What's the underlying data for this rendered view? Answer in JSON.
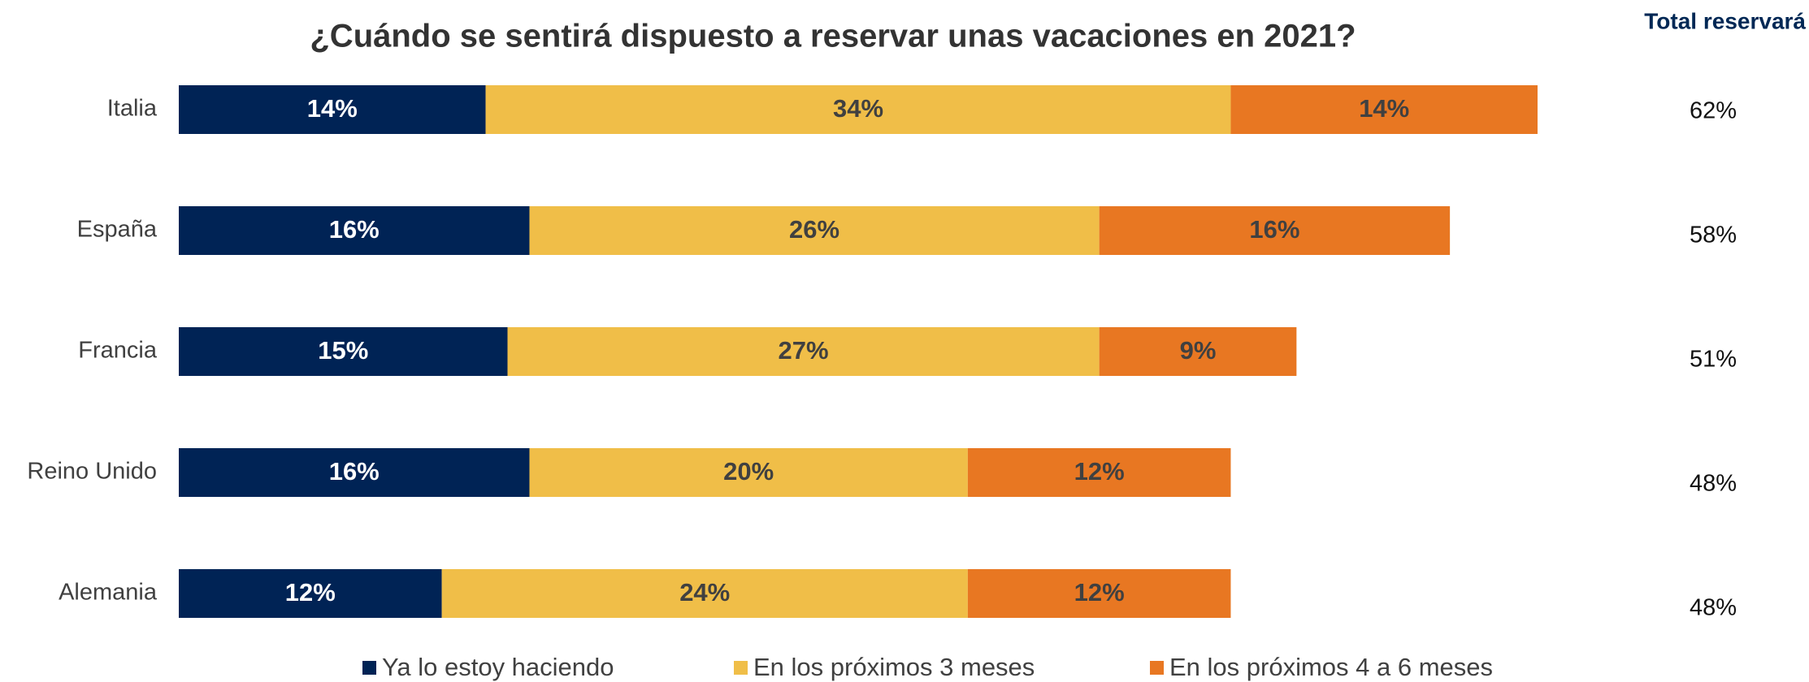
{
  "chart_data": {
    "type": "stacked-bar-horizontal",
    "title": "¿Cuándo se sentirá dispuesto a reservar unas vacaciones en 2021?",
    "categories": [
      "Italia",
      "España",
      "Francia",
      "Reino Unido",
      "Alemania"
    ],
    "series": [
      {
        "name": "Ya lo estoy haciendo",
        "color": "#002355",
        "values": [
          14,
          16,
          15,
          16,
          12
        ],
        "value_labels": [
          "14%",
          "16%",
          "15%",
          "16%",
          "12%"
        ]
      },
      {
        "name": "En los próximos 3 meses",
        "color": "#f0be48",
        "values": [
          34,
          26,
          27,
          20,
          24
        ],
        "value_labels": [
          "34%",
          "26%",
          "27%",
          "20%",
          "24%"
        ]
      },
      {
        "name": "En los próximos 4 a 6 meses",
        "color": "#e87722",
        "values": [
          14,
          16,
          9,
          12,
          12
        ],
        "value_labels": [
          "14%",
          "16%",
          "9%",
          "12%",
          "12%"
        ]
      }
    ],
    "totals": {
      "title": "Total reservará",
      "values": [
        62,
        58,
        51,
        48,
        48
      ],
      "value_labels": [
        "62%",
        "58%",
        "51%",
        "48%",
        "48%"
      ]
    }
  }
}
